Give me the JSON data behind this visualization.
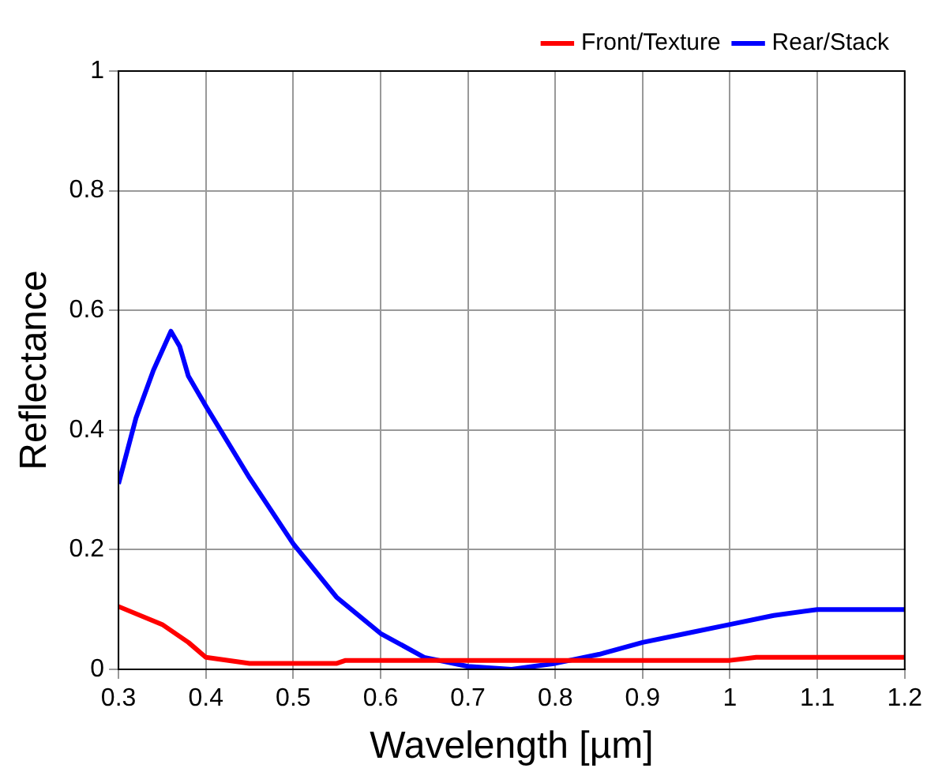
{
  "chart_data": {
    "type": "line",
    "xlabel": "Wavelength [µm]",
    "ylabel": "Reflectance",
    "xlim": [
      0.3,
      1.2
    ],
    "xticks": [
      0.3,
      0.4,
      0.5,
      0.6,
      0.7,
      0.8,
      0.9,
      1,
      1.1,
      1.2
    ],
    "ylim": [
      0,
      1
    ],
    "yticks": [
      0,
      0.2,
      0.4,
      0.6,
      0.8,
      1
    ],
    "grid": true,
    "legend": "top right",
    "marker": "none",
    "line_style": "solid",
    "series": [
      {
        "name": "Front/Texture",
        "color": "#ff0000",
        "x": [
          0.3,
          0.35,
          0.38,
          0.4,
          0.45,
          0.55,
          0.56,
          1.0,
          1.03,
          1.2
        ],
        "values": [
          0.105,
          0.075,
          0.045,
          0.02,
          0.01,
          0.01,
          0.015,
          0.015,
          0.02,
          0.02
        ]
      },
      {
        "name": "Rear/Stack",
        "color": "#0000ff",
        "x": [
          0.3,
          0.32,
          0.34,
          0.36,
          0.37,
          0.38,
          0.4,
          0.45,
          0.5,
          0.55,
          0.6,
          0.65,
          0.7,
          0.75,
          0.8,
          0.85,
          0.9,
          0.95,
          1.0,
          1.05,
          1.1,
          1.2
        ],
        "values": [
          0.31,
          0.42,
          0.5,
          0.565,
          0.54,
          0.49,
          0.44,
          0.32,
          0.21,
          0.12,
          0.06,
          0.02,
          0.005,
          0.0,
          0.01,
          0.025,
          0.045,
          0.06,
          0.075,
          0.09,
          0.1,
          0.1
        ]
      }
    ]
  }
}
